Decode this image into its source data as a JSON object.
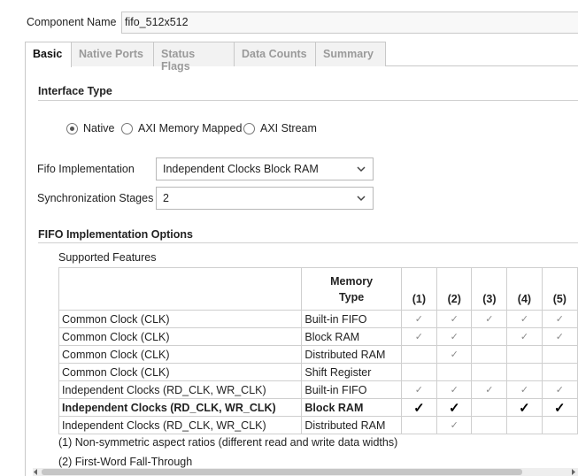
{
  "component_name": {
    "label": "Component Name",
    "value": "fifo_512x512"
  },
  "tabs": [
    {
      "label": "Basic",
      "selected": true
    },
    {
      "label": "Native Ports",
      "selected": false
    },
    {
      "label": "Status Flags",
      "selected": false
    },
    {
      "label": "Data Counts",
      "selected": false
    },
    {
      "label": "Summary",
      "selected": false
    }
  ],
  "interface_type": {
    "title": "Interface Type",
    "options": [
      {
        "label": "Native",
        "checked": true
      },
      {
        "label": "AXI Memory Mapped",
        "checked": false
      },
      {
        "label": "AXI Stream",
        "checked": false
      }
    ]
  },
  "fields": [
    {
      "label": "Fifo Implementation",
      "value": "Independent Clocks Block RAM"
    },
    {
      "label": "Synchronization Stages",
      "value": "2"
    }
  ],
  "options": {
    "title": "FIFO Implementation Options",
    "subtitle": "Supported Features",
    "table": {
      "headers": [
        "Memory Type",
        "(1)",
        "(2)",
        "(3)",
        "(4)",
        "(5)"
      ],
      "rows": [
        {
          "feature": "Common Clock (CLK)",
          "memory_type": "Built-in FIFO",
          "cells": [
            "✓",
            "✓",
            "✓",
            "✓",
            "✓"
          ],
          "bold": false
        },
        {
          "feature": "Common Clock (CLK)",
          "memory_type": "Block RAM",
          "cells": [
            "✓",
            "✓",
            null,
            "✓",
            "✓"
          ],
          "bold": false
        },
        {
          "feature": "Common Clock (CLK)",
          "memory_type": "Distributed RAM",
          "cells": [
            null,
            "✓",
            null,
            null,
            null
          ],
          "bold": false
        },
        {
          "feature": "Common Clock (CLK)",
          "memory_type": "Shift Register",
          "cells": [
            null,
            null,
            null,
            null,
            null
          ],
          "bold": false
        },
        {
          "feature": "Independent Clocks (RD_CLK, WR_CLK)",
          "memory_type": "Built-in FIFO",
          "cells": [
            "✓",
            "✓",
            "✓",
            "✓",
            "✓"
          ],
          "bold": false
        },
        {
          "feature": "Independent Clocks (RD_CLK, WR_CLK)",
          "memory_type": "Block RAM",
          "cells": [
            "✓",
            "✓",
            null,
            "✓",
            "✓"
          ],
          "bold": true
        },
        {
          "feature": "Independent Clocks (RD_CLK, WR_CLK)",
          "memory_type": "Distributed RAM",
          "cells": [
            null,
            "✓",
            null,
            null,
            null
          ],
          "bold": false
        }
      ]
    },
    "notes": [
      "(1) Non-symmetric aspect ratios (different read and write data widths)",
      "(2) First-Word Fall-Through"
    ]
  }
}
